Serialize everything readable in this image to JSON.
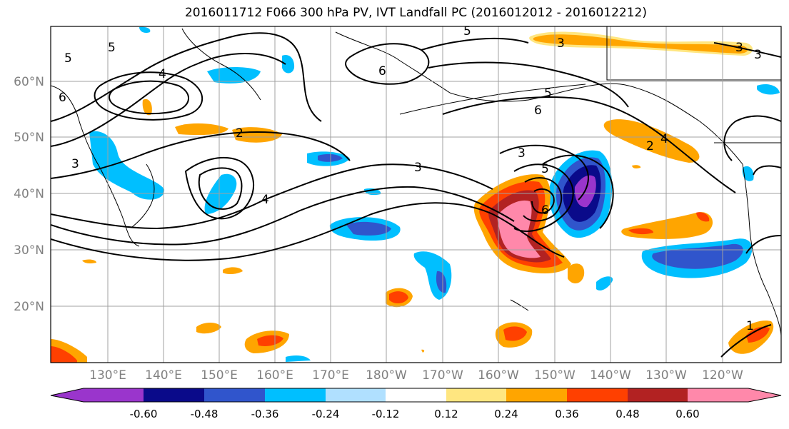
{
  "title": "2016011712 F066 300 hPa PV, IVT Landfall PC (2016012012 - 2016012212)",
  "lat_labels": [
    "60°N",
    "50°N",
    "40°N",
    "30°N",
    "20°N"
  ],
  "lon_labels": [
    "130°E",
    "140°E",
    "150°E",
    "160°E",
    "170°E",
    "180°W",
    "170°W",
    "160°W",
    "150°W",
    "140°W",
    "130°W",
    "120°W"
  ],
  "contour_labels": [
    "5",
    "5",
    "4",
    "6",
    "3",
    "5",
    "2",
    "6",
    "3",
    "3",
    "5",
    "6",
    "3",
    "2",
    "4",
    "3",
    "4",
    "1",
    "5",
    "6",
    "3"
  ],
  "colorbar": {
    "colors": [
      "#9a35cc",
      "#0a0a8a",
      "#3055cc",
      "#00bfff",
      "#b0e0ff",
      "#ffffff",
      "#ffe680",
      "#ffa500",
      "#ff4000",
      "#b22222",
      "#ff88aa"
    ],
    "tick_labels": [
      "-0.60",
      "-0.48",
      "-0.36",
      "-0.24",
      "-0.12",
      "0.12",
      "0.24",
      "0.36",
      "0.48",
      "0.60"
    ]
  },
  "colors": {
    "axis_label": "#808080",
    "gridline": "#a0a0a0",
    "contour": "#000000"
  }
}
